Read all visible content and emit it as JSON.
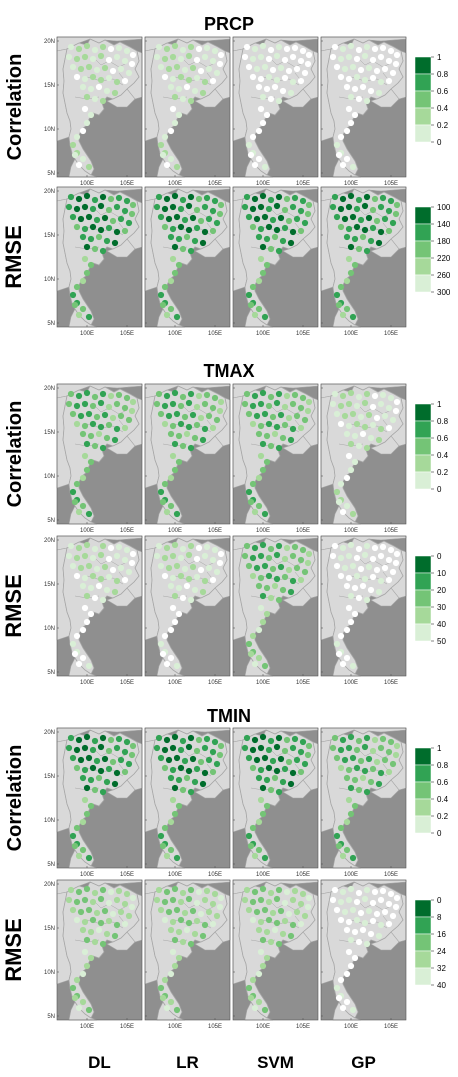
{
  "colors": {
    "ocean": "#8f8f8f",
    "land": "#d9d9d9",
    "border": "#a6a6a6",
    "scale": [
      "#ffffff",
      "#d9efd6",
      "#a6d99a",
      "#74c476",
      "#31a354",
      "#006d2c"
    ]
  },
  "map": {
    "lat_ticks": [
      "20N",
      "15N",
      "10N",
      "5N"
    ],
    "lon_ticks": [
      "100E",
      "105E"
    ]
  },
  "columns": [
    "DL",
    "LR",
    "SVM",
    "GP"
  ],
  "chart_data": [
    {
      "type": "heatmap",
      "title": "PRCP",
      "rows": [
        {
          "ylabel": "Correlation",
          "legend": {
            "ticks": [
              "1",
              "0.8",
              "0.6",
              "0.4",
              "0.2",
              "0"
            ],
            "reverse": false
          },
          "panels": [
            {
              "name": "DL",
              "level": 1,
              "variation": 1
            },
            {
              "name": "LR",
              "level": 1,
              "variation": 1
            },
            {
              "name": "SVM",
              "level": 0,
              "variation": 1
            },
            {
              "name": "GP",
              "level": 0,
              "variation": 1
            }
          ]
        },
        {
          "ylabel": "RMSE",
          "legend": {
            "ticks": [
              "100",
              "140",
              "180",
              "220",
              "260",
              "300"
            ],
            "reverse": true
          },
          "panels": [
            {
              "name": "DL",
              "level": 4,
              "variation": 2
            },
            {
              "name": "LR",
              "level": 4,
              "variation": 2
            },
            {
              "name": "SVM",
              "level": 4,
              "variation": 2
            },
            {
              "name": "GP",
              "level": 4,
              "variation": 2
            }
          ]
        }
      ]
    },
    {
      "type": "heatmap",
      "title": "TMAX",
      "rows": [
        {
          "ylabel": "Correlation",
          "legend": {
            "ticks": [
              "1",
              "0.8",
              "0.6",
              "0.4",
              "0.2",
              "0"
            ],
            "reverse": false
          },
          "panels": [
            {
              "name": "DL",
              "level": 3,
              "variation": 1
            },
            {
              "name": "LR",
              "level": 3,
              "variation": 1
            },
            {
              "name": "SVM",
              "level": 3,
              "variation": 1
            },
            {
              "name": "GP",
              "level": 1,
              "variation": 1
            }
          ]
        },
        {
          "ylabel": "RMSE",
          "legend": {
            "ticks": [
              "0",
              "10",
              "20",
              "30",
              "40",
              "50"
            ],
            "reverse": true
          },
          "panels": [
            {
              "name": "DL",
              "level": 1,
              "variation": 2
            },
            {
              "name": "LR",
              "level": 1,
              "variation": 2
            },
            {
              "name": "SVM",
              "level": 3,
              "variation": 2
            },
            {
              "name": "GP",
              "level": 0,
              "variation": 1
            }
          ]
        }
      ]
    },
    {
      "type": "heatmap",
      "title": "TMIN",
      "rows": [
        {
          "ylabel": "Correlation",
          "legend": {
            "ticks": [
              "1",
              "0.8",
              "0.6",
              "0.4",
              "0.2",
              "0"
            ],
            "reverse": false
          },
          "panels": [
            {
              "name": "DL",
              "level": 4,
              "variation": 2
            },
            {
              "name": "LR",
              "level": 4,
              "variation": 2
            },
            {
              "name": "SVM",
              "level": 4,
              "variation": 2
            },
            {
              "name": "GP",
              "level": 3,
              "variation": 1
            }
          ]
        },
        {
          "ylabel": "RMSE",
          "legend": {
            "ticks": [
              "0",
              "8",
              "16",
              "24",
              "32",
              "40"
            ],
            "reverse": true
          },
          "panels": [
            {
              "name": "DL",
              "level": 2,
              "variation": 1
            },
            {
              "name": "LR",
              "level": 2,
              "variation": 1
            },
            {
              "name": "SVM",
              "level": 2,
              "variation": 1
            },
            {
              "name": "GP",
              "level": 0,
              "variation": 1
            }
          ]
        }
      ]
    }
  ]
}
